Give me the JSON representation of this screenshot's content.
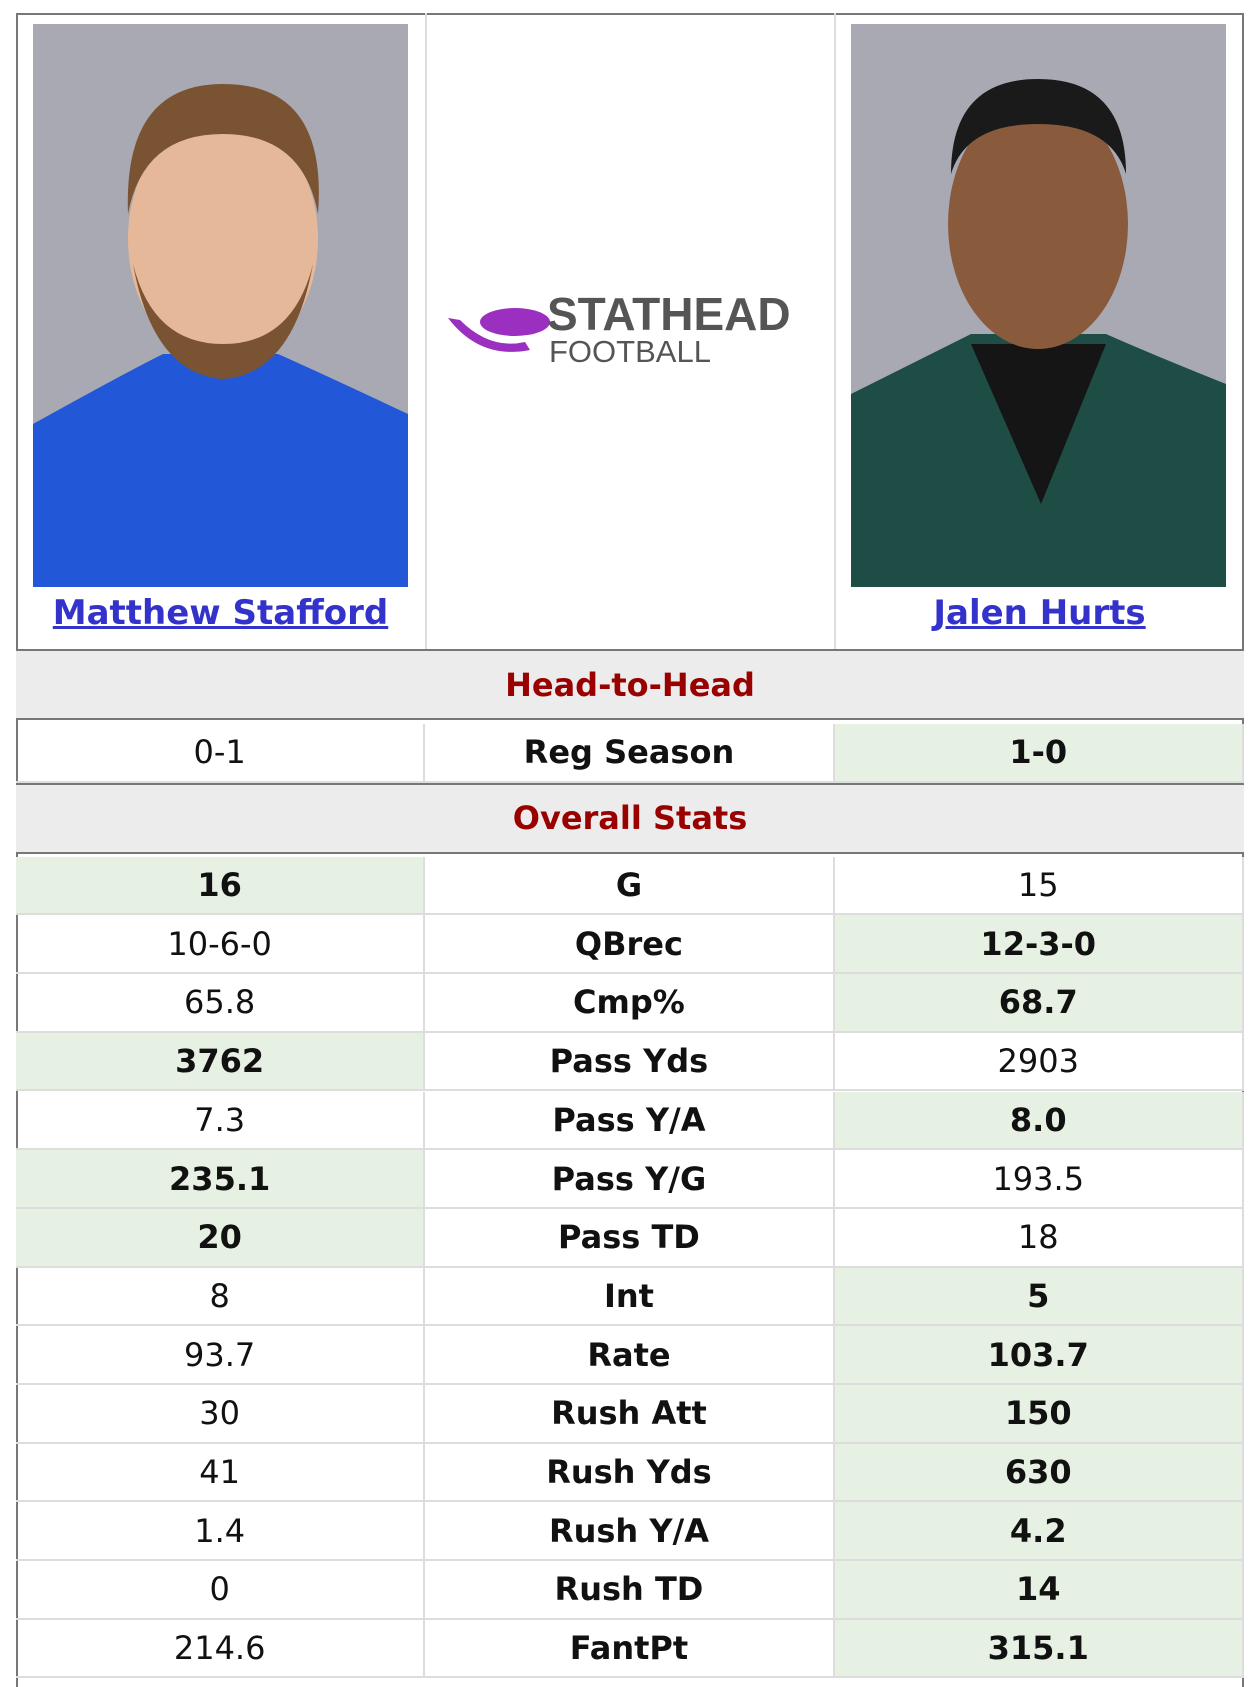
{
  "players": [
    {
      "name": "Matthew Stafford"
    },
    {
      "name": "Jalen Hurts"
    }
  ],
  "logo": {
    "line1": "STATHEAD",
    "line2": "FOOTBALL"
  },
  "sections": [
    {
      "title": "Head-to-Head",
      "rows": [
        {
          "label": "Reg Season",
          "left": "0-1",
          "right": "1-0",
          "leader": "right"
        }
      ]
    },
    {
      "title": "Overall Stats",
      "rows": [
        {
          "label": "G",
          "left": "16",
          "right": "15",
          "leader": "left"
        },
        {
          "label": "QBrec",
          "left": "10-6-0",
          "right": "12-3-0",
          "leader": "right"
        },
        {
          "label": "Cmp%",
          "left": "65.8",
          "right": "68.7",
          "leader": "right"
        },
        {
          "label": "Pass Yds",
          "left": "3762",
          "right": "2903",
          "leader": "left"
        },
        {
          "label": "Pass Y/A",
          "left": "7.3",
          "right": "8.0",
          "leader": "right"
        },
        {
          "label": "Pass Y/G",
          "left": "235.1",
          "right": "193.5",
          "leader": "left"
        },
        {
          "label": "Pass TD",
          "left": "20",
          "right": "18",
          "leader": "left"
        },
        {
          "label": "Int",
          "left": "8",
          "right": "5",
          "leader": "right"
        },
        {
          "label": "Rate",
          "left": "93.7",
          "right": "103.7",
          "leader": "right"
        },
        {
          "label": "Rush Att",
          "left": "30",
          "right": "150",
          "leader": "right"
        },
        {
          "label": "Rush Yds",
          "left": "41",
          "right": "630",
          "leader": "right"
        },
        {
          "label": "Rush Y/A",
          "left": "1.4",
          "right": "4.2",
          "leader": "right"
        },
        {
          "label": "Rush TD",
          "left": "0",
          "right": "14",
          "leader": "right"
        },
        {
          "label": "FantPt",
          "left": "214.6",
          "right": "315.1",
          "leader": "right"
        }
      ]
    }
  ]
}
